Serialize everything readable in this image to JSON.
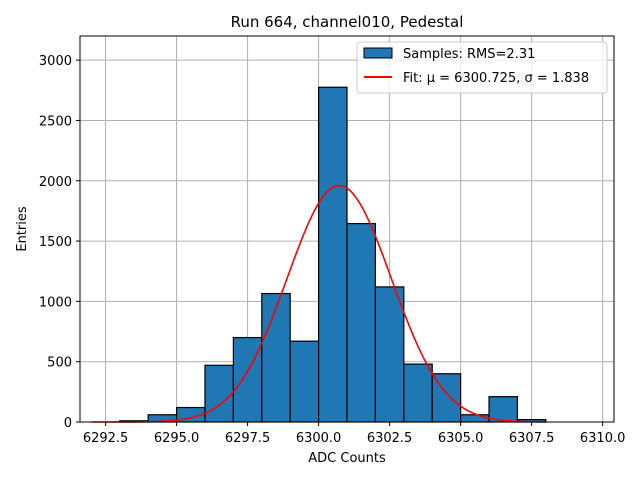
{
  "chart_data": {
    "type": "bar",
    "title": "Run 664, channel010, Pedestal",
    "xlabel": "ADC Counts",
    "ylabel": "Entries",
    "xlim": [
      6291.6,
      6310.4
    ],
    "ylim": [
      0,
      3200
    ],
    "xticks": [
      6292.5,
      6295.0,
      6297.5,
      6300.0,
      6302.5,
      6305.0,
      6307.5,
      6310.0
    ],
    "xtick_labels": [
      "6292.5",
      "6295.0",
      "6297.5",
      "6300.0",
      "6302.5",
      "6305.0",
      "6307.5",
      "6310.0"
    ],
    "yticks": [
      0,
      500,
      1000,
      1500,
      2000,
      2500,
      3000
    ],
    "ytick_labels": [
      "0",
      "500",
      "1000",
      "1500",
      "2000",
      "2500",
      "3000"
    ],
    "grid": true,
    "legend_position": "top-right",
    "series": [
      {
        "name": "Samples: RMS=2.31",
        "kind": "histogram",
        "color": "#1f77b4",
        "bins": [
          {
            "x0": 6293,
            "x1": 6294,
            "value": 10
          },
          {
            "x0": 6294,
            "x1": 6295,
            "value": 60
          },
          {
            "x0": 6295,
            "x1": 6296,
            "value": 120
          },
          {
            "x0": 6296,
            "x1": 6297,
            "value": 470
          },
          {
            "x0": 6297,
            "x1": 6298,
            "value": 700
          },
          {
            "x0": 6298,
            "x1": 6299,
            "value": 1065
          },
          {
            "x0": 6299,
            "x1": 6300,
            "value": 670
          },
          {
            "x0": 6300,
            "x1": 6301,
            "value": 2775
          },
          {
            "x0": 6301,
            "x1": 6302,
            "value": 1645
          },
          {
            "x0": 6302,
            "x1": 6303,
            "value": 1120
          },
          {
            "x0": 6303,
            "x1": 6304,
            "value": 480
          },
          {
            "x0": 6304,
            "x1": 6305,
            "value": 400
          },
          {
            "x0": 6305,
            "x1": 6306,
            "value": 60
          },
          {
            "x0": 6306,
            "x1": 6307,
            "value": 210
          },
          {
            "x0": 6307,
            "x1": 6308,
            "value": 20
          }
        ]
      },
      {
        "name": "Fit: μ = 6300.725, σ = 1.838",
        "kind": "gaussian",
        "color": "#ff0000",
        "mu": 6300.725,
        "sigma": 1.838,
        "amplitude": 1960,
        "x_range": [
          6292.0,
          6308.0
        ]
      }
    ]
  }
}
